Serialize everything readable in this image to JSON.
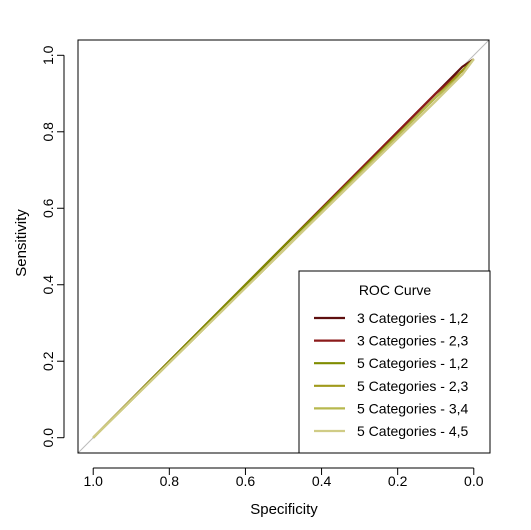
{
  "chart_data": {
    "type": "line",
    "xlabel": "Specificity",
    "ylabel": "Sensitivity",
    "xlim": [
      1.04,
      -0.04
    ],
    "ylim": [
      -0.04,
      1.04
    ],
    "x_reversed": true,
    "x_ticks": [
      "1.0",
      "0.8",
      "0.6",
      "0.4",
      "0.2",
      "0.0"
    ],
    "y_ticks": [
      "0.0",
      "0.2",
      "0.4",
      "0.6",
      "0.8",
      "1.0"
    ],
    "reference_line": {
      "from": [
        1,
        0
      ],
      "to": [
        0,
        1
      ],
      "color": "#bbbbbb"
    },
    "legend": {
      "title": "ROC Curve",
      "position": "bottom-right"
    },
    "series": [
      {
        "name": "3 Categories - 1,2",
        "color": "#5e0f0f",
        "x": [
          1.0,
          0.5,
          0.1,
          0.03,
          0.0
        ],
        "y": [
          0.0,
          0.5,
          0.9,
          0.97,
          0.99
        ]
      },
      {
        "name": "3 Categories - 2,3",
        "color": "#8b1a1a",
        "x": [
          1.0,
          0.5,
          0.1,
          0.03,
          0.0
        ],
        "y": [
          0.0,
          0.5,
          0.9,
          0.96,
          0.99
        ]
      },
      {
        "name": "5 Categories - 1,2",
        "color": "#7f8c00",
        "x": [
          1.0,
          0.5,
          0.1,
          0.03,
          0.0
        ],
        "y": [
          0.0,
          0.5,
          0.89,
          0.96,
          0.99
        ]
      },
      {
        "name": "5 Categories - 2,3",
        "color": "#a09a1c",
        "x": [
          1.0,
          0.5,
          0.1,
          0.03,
          0.0
        ],
        "y": [
          0.0,
          0.49,
          0.89,
          0.96,
          0.99
        ]
      },
      {
        "name": "5 Categories - 3,4",
        "color": "#b7b84e",
        "x": [
          1.0,
          0.5,
          0.1,
          0.03,
          0.0
        ],
        "y": [
          0.0,
          0.49,
          0.89,
          0.95,
          0.99
        ]
      },
      {
        "name": "5 Categories - 4,5",
        "color": "#d0cc86",
        "x": [
          1.0,
          0.5,
          0.1,
          0.03,
          0.0
        ],
        "y": [
          0.0,
          0.49,
          0.88,
          0.95,
          0.99
        ]
      }
    ]
  }
}
